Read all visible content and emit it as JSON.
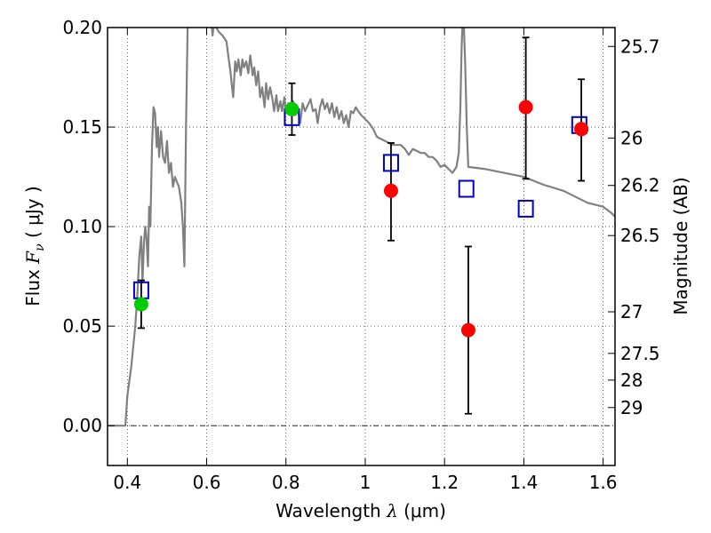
{
  "chart_data": {
    "type": "scatter",
    "xlabel_prefix": "Wavelength  ",
    "xlabel_symbol": "λ",
    "xlabel_suffix": " (μm)",
    "ylabel_prefix": "Flux  ",
    "ylabel_symbol": "F",
    "ylabel_sub": "ν",
    "ylabel_suffix": "  (  μJy  )",
    "y2label": "Magnitude (AB)",
    "xlim": [
      0.35,
      1.63
    ],
    "ylim": [
      -0.02,
      0.2
    ],
    "x_ticks": [
      0.4,
      0.6,
      0.8,
      1.0,
      1.2,
      1.4,
      1.6
    ],
    "x_tick_labels": [
      "0.4",
      "0.6",
      "0.8",
      "1",
      "1.2",
      "1.4",
      "1.6"
    ],
    "y_ticks": [
      0.0,
      0.05,
      0.1,
      0.15,
      0.2
    ],
    "y_tick_labels": [
      "0.00",
      "0.05",
      "0.10",
      "0.15",
      "0.20"
    ],
    "y2_ticks": [
      {
        "flux": 0.1905,
        "label": "25.7"
      },
      {
        "flux": 0.1445,
        "label": "26"
      },
      {
        "flux": 0.1207,
        "label": "26.2"
      },
      {
        "flux": 0.0955,
        "label": "26.5"
      },
      {
        "flux": 0.0572,
        "label": "27"
      },
      {
        "flux": 0.0363,
        "label": "27.5"
      },
      {
        "flux": 0.0229,
        "label": "28"
      },
      {
        "flux": 0.0091,
        "label": "29"
      }
    ],
    "grid": true,
    "zero_line": true,
    "series": [
      {
        "kind": "line",
        "color": "#808080",
        "points": [
          [
            0.35,
            0.0
          ],
          [
            0.395,
            0.0
          ],
          [
            0.4,
            0.015
          ],
          [
            0.41,
            0.03
          ],
          [
            0.42,
            0.05
          ],
          [
            0.425,
            0.065
          ],
          [
            0.43,
            0.085
          ],
          [
            0.435,
            0.095
          ],
          [
            0.438,
            0.072
          ],
          [
            0.442,
            0.092
          ],
          [
            0.445,
            0.1
          ],
          [
            0.448,
            0.095
          ],
          [
            0.452,
            0.08
          ],
          [
            0.455,
            0.11
          ],
          [
            0.458,
            0.1
          ],
          [
            0.462,
            0.14
          ],
          [
            0.466,
            0.16
          ],
          [
            0.47,
            0.157
          ],
          [
            0.474,
            0.14
          ],
          [
            0.477,
            0.15
          ],
          [
            0.48,
            0.135
          ],
          [
            0.485,
            0.148
          ],
          [
            0.49,
            0.135
          ],
          [
            0.495,
            0.132
          ],
          [
            0.5,
            0.143
          ],
          [
            0.505,
            0.127
          ],
          [
            0.51,
            0.132
          ],
          [
            0.515,
            0.12
          ],
          [
            0.52,
            0.125
          ],
          [
            0.53,
            0.12
          ],
          [
            0.536,
            0.112
          ],
          [
            0.54,
            0.1
          ],
          [
            0.544,
            0.08
          ],
          [
            0.548,
            0.15
          ],
          [
            0.552,
            0.2
          ],
          [
            0.556,
            0.215
          ],
          [
            0.57,
            0.215
          ],
          [
            0.6,
            0.215
          ],
          [
            0.61,
            0.207
          ],
          [
            0.615,
            0.196
          ],
          [
            0.618,
            0.202
          ],
          [
            0.63,
            0.198
          ],
          [
            0.64,
            0.196
          ],
          [
            0.65,
            0.193
          ],
          [
            0.655,
            0.185
          ],
          [
            0.66,
            0.178
          ],
          [
            0.663,
            0.172
          ],
          [
            0.667,
            0.165
          ],
          [
            0.672,
            0.183
          ],
          [
            0.676,
            0.178
          ],
          [
            0.68,
            0.184
          ],
          [
            0.686,
            0.176
          ],
          [
            0.69,
            0.184
          ],
          [
            0.694,
            0.18
          ],
          [
            0.7,
            0.183
          ],
          [
            0.705,
            0.177
          ],
          [
            0.71,
            0.186
          ],
          [
            0.716,
            0.176
          ],
          [
            0.72,
            0.18
          ],
          [
            0.725,
            0.171
          ],
          [
            0.73,
            0.178
          ],
          [
            0.735,
            0.165
          ],
          [
            0.74,
            0.17
          ],
          [
            0.746,
            0.16
          ],
          [
            0.75,
            0.172
          ],
          [
            0.755,
            0.164
          ],
          [
            0.76,
            0.17
          ],
          [
            0.766,
            0.164
          ],
          [
            0.77,
            0.158
          ],
          [
            0.776,
            0.166
          ],
          [
            0.78,
            0.158
          ],
          [
            0.786,
            0.163
          ],
          [
            0.79,
            0.158
          ],
          [
            0.796,
            0.165
          ],
          [
            0.8,
            0.157
          ],
          [
            0.806,
            0.162
          ],
          [
            0.812,
            0.157
          ],
          [
            0.818,
            0.163
          ],
          [
            0.824,
            0.156
          ],
          [
            0.83,
            0.159
          ],
          [
            0.836,
            0.152
          ],
          [
            0.842,
            0.162
          ],
          [
            0.848,
            0.158
          ],
          [
            0.855,
            0.161
          ],
          [
            0.862,
            0.164
          ],
          [
            0.868,
            0.158
          ],
          [
            0.875,
            0.159
          ],
          [
            0.88,
            0.152
          ],
          [
            0.886,
            0.16
          ],
          [
            0.892,
            0.164
          ],
          [
            0.898,
            0.159
          ],
          [
            0.904,
            0.162
          ],
          [
            0.91,
            0.157
          ],
          [
            0.916,
            0.162
          ],
          [
            0.922,
            0.155
          ],
          [
            0.928,
            0.16
          ],
          [
            0.934,
            0.154
          ],
          [
            0.94,
            0.158
          ],
          [
            0.946,
            0.152
          ],
          [
            0.952,
            0.156
          ],
          [
            0.958,
            0.15
          ],
          [
            0.964,
            0.158
          ],
          [
            0.97,
            0.157
          ],
          [
            0.976,
            0.16
          ],
          [
            0.982,
            0.158
          ],
          [
            0.99,
            0.156
          ],
          [
            1.0,
            0.154
          ],
          [
            1.01,
            0.152
          ],
          [
            1.02,
            0.149
          ],
          [
            1.03,
            0.145
          ],
          [
            1.04,
            0.144
          ],
          [
            1.05,
            0.143
          ],
          [
            1.06,
            0.142
          ],
          [
            1.07,
            0.141
          ],
          [
            1.08,
            0.141
          ],
          [
            1.09,
            0.141
          ],
          [
            1.1,
            0.139
          ],
          [
            1.11,
            0.136
          ],
          [
            1.12,
            0.139
          ],
          [
            1.13,
            0.138
          ],
          [
            1.14,
            0.137
          ],
          [
            1.15,
            0.137
          ],
          [
            1.16,
            0.135
          ],
          [
            1.17,
            0.135
          ],
          [
            1.18,
            0.133
          ],
          [
            1.19,
            0.13
          ],
          [
            1.2,
            0.131
          ],
          [
            1.21,
            0.129
          ],
          [
            1.22,
            0.127
          ],
          [
            1.23,
            0.13
          ],
          [
            1.236,
            0.137
          ],
          [
            1.24,
            0.16
          ],
          [
            1.243,
            0.19
          ],
          [
            1.246,
            0.205
          ],
          [
            1.249,
            0.2
          ],
          [
            1.252,
            0.182
          ],
          [
            1.256,
            0.15
          ],
          [
            1.26,
            0.13
          ],
          [
            1.3,
            0.129
          ],
          [
            1.35,
            0.127
          ],
          [
            1.4,
            0.125
          ],
          [
            1.45,
            0.121
          ],
          [
            1.5,
            0.118
          ],
          [
            1.54,
            0.114
          ],
          [
            1.56,
            0.112
          ],
          [
            1.6,
            0.11
          ],
          [
            1.62,
            0.107
          ],
          [
            1.63,
            0.105
          ]
        ]
      },
      {
        "kind": "squares",
        "color": "#0000cc",
        "points": [
          [
            0.435,
            0.068
          ],
          [
            0.815,
            0.155
          ],
          [
            1.065,
            0.132
          ],
          [
            1.255,
            0.119
          ],
          [
            1.405,
            0.109
          ],
          [
            1.54,
            0.151
          ]
        ]
      },
      {
        "kind": "dots",
        "color": "#00cc00",
        "points": [
          [
            0.435,
            0.061
          ],
          [
            0.815,
            0.159
          ]
        ]
      },
      {
        "kind": "dots",
        "color": "#ff0000",
        "points": [
          [
            1.065,
            0.118
          ],
          [
            1.26,
            0.048
          ],
          [
            1.405,
            0.16
          ],
          [
            1.545,
            0.149
          ]
        ]
      },
      {
        "kind": "errorbars",
        "color": "#000000",
        "bars": [
          {
            "x": 0.435,
            "lo": 0.049,
            "hi": 0.073
          },
          {
            "x": 0.815,
            "lo": 0.146,
            "hi": 0.172
          },
          {
            "x": 1.065,
            "lo": 0.093,
            "hi": 0.142
          },
          {
            "x": 1.26,
            "lo": 0.006,
            "hi": 0.09
          },
          {
            "x": 1.405,
            "lo": 0.124,
            "hi": 0.195
          },
          {
            "x": 1.545,
            "lo": 0.123,
            "hi": 0.174
          }
        ]
      }
    ]
  }
}
